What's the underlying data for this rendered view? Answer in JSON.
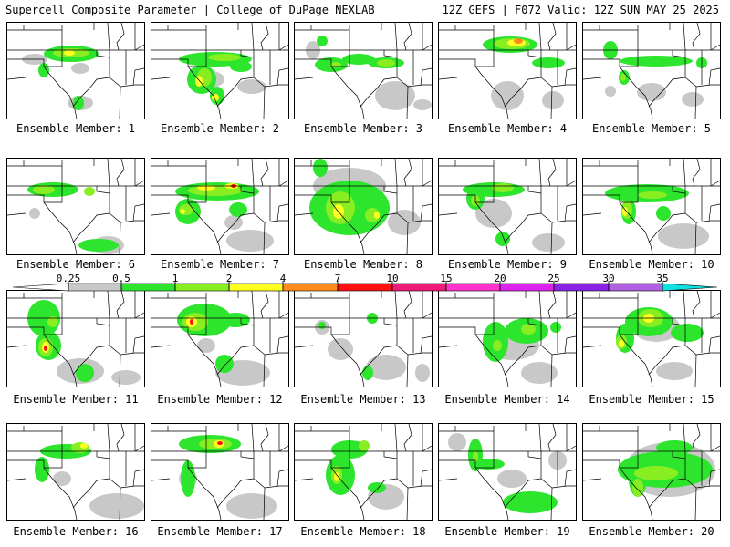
{
  "header": {
    "left": "Supercell Composite Parameter | College of DuPage NEXLAB",
    "right": "12Z GEFS | F072 Valid: 12Z SUN MAY 25 2025"
  },
  "legend": {
    "ticks": [
      "0.25",
      "0.5",
      "1",
      "2",
      "4",
      "7",
      "10",
      "15",
      "20",
      "25",
      "30",
      "35"
    ],
    "colors": [
      "#c8c8c8",
      "#2ee52e",
      "#88ee22",
      "#ffff22",
      "#ff8c1a",
      "#ff1010",
      "#f01a78",
      "#ff33cc",
      "#dd22ee",
      "#8a22e6",
      "#b060e0",
      "#11e0e0"
    ]
  },
  "panels": [
    {
      "label": "Ensemble Member: 1"
    },
    {
      "label": "Ensemble Member: 2"
    },
    {
      "label": "Ensemble Member: 3"
    },
    {
      "label": "Ensemble Member: 4"
    },
    {
      "label": "Ensemble Member: 5"
    },
    {
      "label": "Ensemble Member: 6"
    },
    {
      "label": "Ensemble Member: 7"
    },
    {
      "label": "Ensemble Member: 8"
    },
    {
      "label": "Ensemble Member: 9"
    },
    {
      "label": "Ensemble Member: 10"
    },
    {
      "label": "Ensemble Member: 11"
    },
    {
      "label": "Ensemble Member: 12"
    },
    {
      "label": "Ensemble Member: 13"
    },
    {
      "label": "Ensemble Member: 14"
    },
    {
      "label": "Ensemble Member: 15"
    },
    {
      "label": "Ensemble Member: 16"
    },
    {
      "label": "Ensemble Member: 17"
    },
    {
      "label": "Ensemble Member: 18"
    },
    {
      "label": "Ensemble Member: 19"
    },
    {
      "label": "Ensemble Member: 20"
    }
  ]
}
